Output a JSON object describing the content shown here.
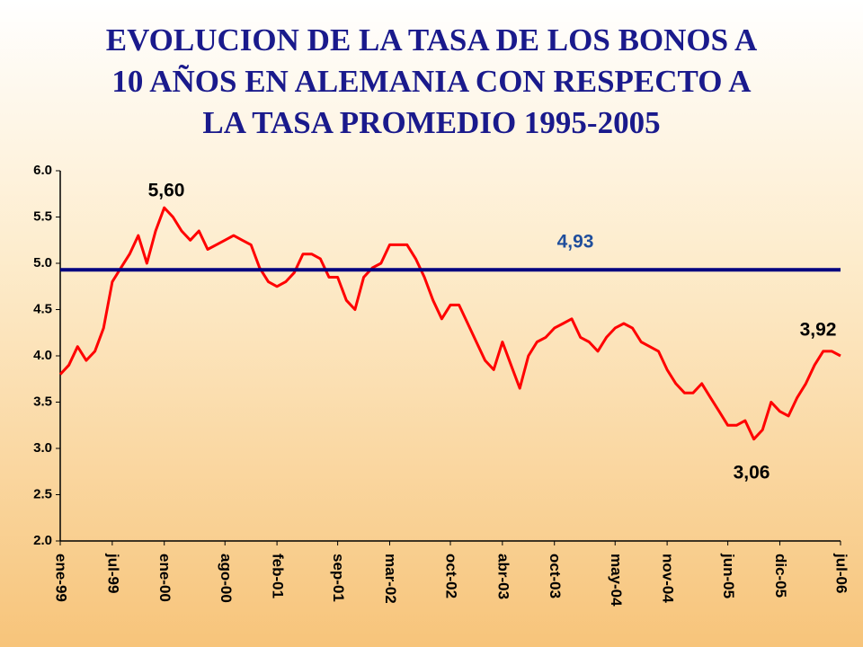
{
  "chart_data": {
    "type": "line",
    "title": [
      "EVOLUCION DE LA TASA DE LOS BONOS A",
      "10 AÑOS EN ALEMANIA CON RESPECTO A",
      "LA TASA PROMEDIO 1995-2005"
    ],
    "categories": [
      "ene-99",
      null,
      null,
      null,
      null,
      null,
      "jul-99",
      null,
      null,
      null,
      null,
      null,
      "ene-00",
      null,
      null,
      null,
      null,
      null,
      null,
      "ago-00",
      null,
      null,
      null,
      null,
      null,
      "feb-01",
      null,
      null,
      null,
      null,
      null,
      null,
      "sep-01",
      null,
      null,
      null,
      null,
      null,
      "mar-02",
      null,
      null,
      null,
      null,
      null,
      null,
      "oct-02",
      null,
      null,
      null,
      null,
      null,
      "abr-03",
      null,
      null,
      null,
      null,
      null,
      "oct-03",
      null,
      null,
      null,
      null,
      null,
      null,
      "may-04",
      null,
      null,
      null,
      null,
      null,
      "nov-04",
      null,
      null,
      null,
      null,
      null,
      null,
      "jun-05",
      null,
      null,
      null,
      null,
      null,
      "dic-05",
      null,
      null,
      null,
      null,
      null,
      null,
      "jul-06"
    ],
    "series": [
      {
        "color": "#ff0000",
        "values": [
          3.8,
          3.9,
          4.1,
          3.95,
          4.05,
          4.3,
          4.8,
          4.95,
          5.1,
          5.3,
          5.0,
          5.35,
          5.6,
          5.5,
          5.35,
          5.25,
          5.35,
          5.15,
          5.2,
          5.25,
          5.3,
          5.25,
          5.2,
          4.95,
          4.8,
          4.75,
          4.8,
          4.9,
          5.1,
          5.1,
          5.05,
          4.85,
          4.85,
          4.6,
          4.5,
          4.85,
          4.95,
          5.0,
          5.2,
          5.2,
          5.2,
          5.05,
          4.85,
          4.6,
          4.4,
          4.55,
          4.55,
          4.35,
          4.15,
          3.95,
          3.85,
          4.15,
          3.9,
          3.65,
          4.0,
          4.15,
          4.2,
          4.3,
          4.35,
          4.4,
          4.2,
          4.15,
          4.05,
          4.2,
          4.3,
          4.35,
          4.3,
          4.15,
          4.1,
          4.05,
          3.85,
          3.7,
          3.6,
          3.6,
          3.7,
          3.55,
          3.4,
          3.25,
          3.25,
          3.3,
          3.1,
          3.2,
          3.5,
          3.4,
          3.35,
          3.55,
          3.7,
          3.9,
          4.05,
          4.05,
          4.0
        ]
      }
    ],
    "ylim": [
      2,
      6
    ],
    "yticks": [
      {
        "value": 2,
        "label": "2.0"
      },
      2.5,
      {
        "value": 3,
        "label": "3.0"
      },
      3.5,
      {
        "value": 4,
        "label": "4.0"
      },
      4.5,
      {
        "value": 5,
        "label": "5.0"
      },
      5.5,
      {
        "value": 6,
        "label": "6.0"
      }
    ],
    "reference_line": {
      "value": 4.93,
      "label": "4,93",
      "color": "#000080"
    },
    "annotations": [
      {
        "text": "5,60",
        "value": 5.6
      },
      {
        "text": "3,92",
        "value": 3.92
      },
      {
        "text": "3,06",
        "value": 3.06
      }
    ]
  }
}
